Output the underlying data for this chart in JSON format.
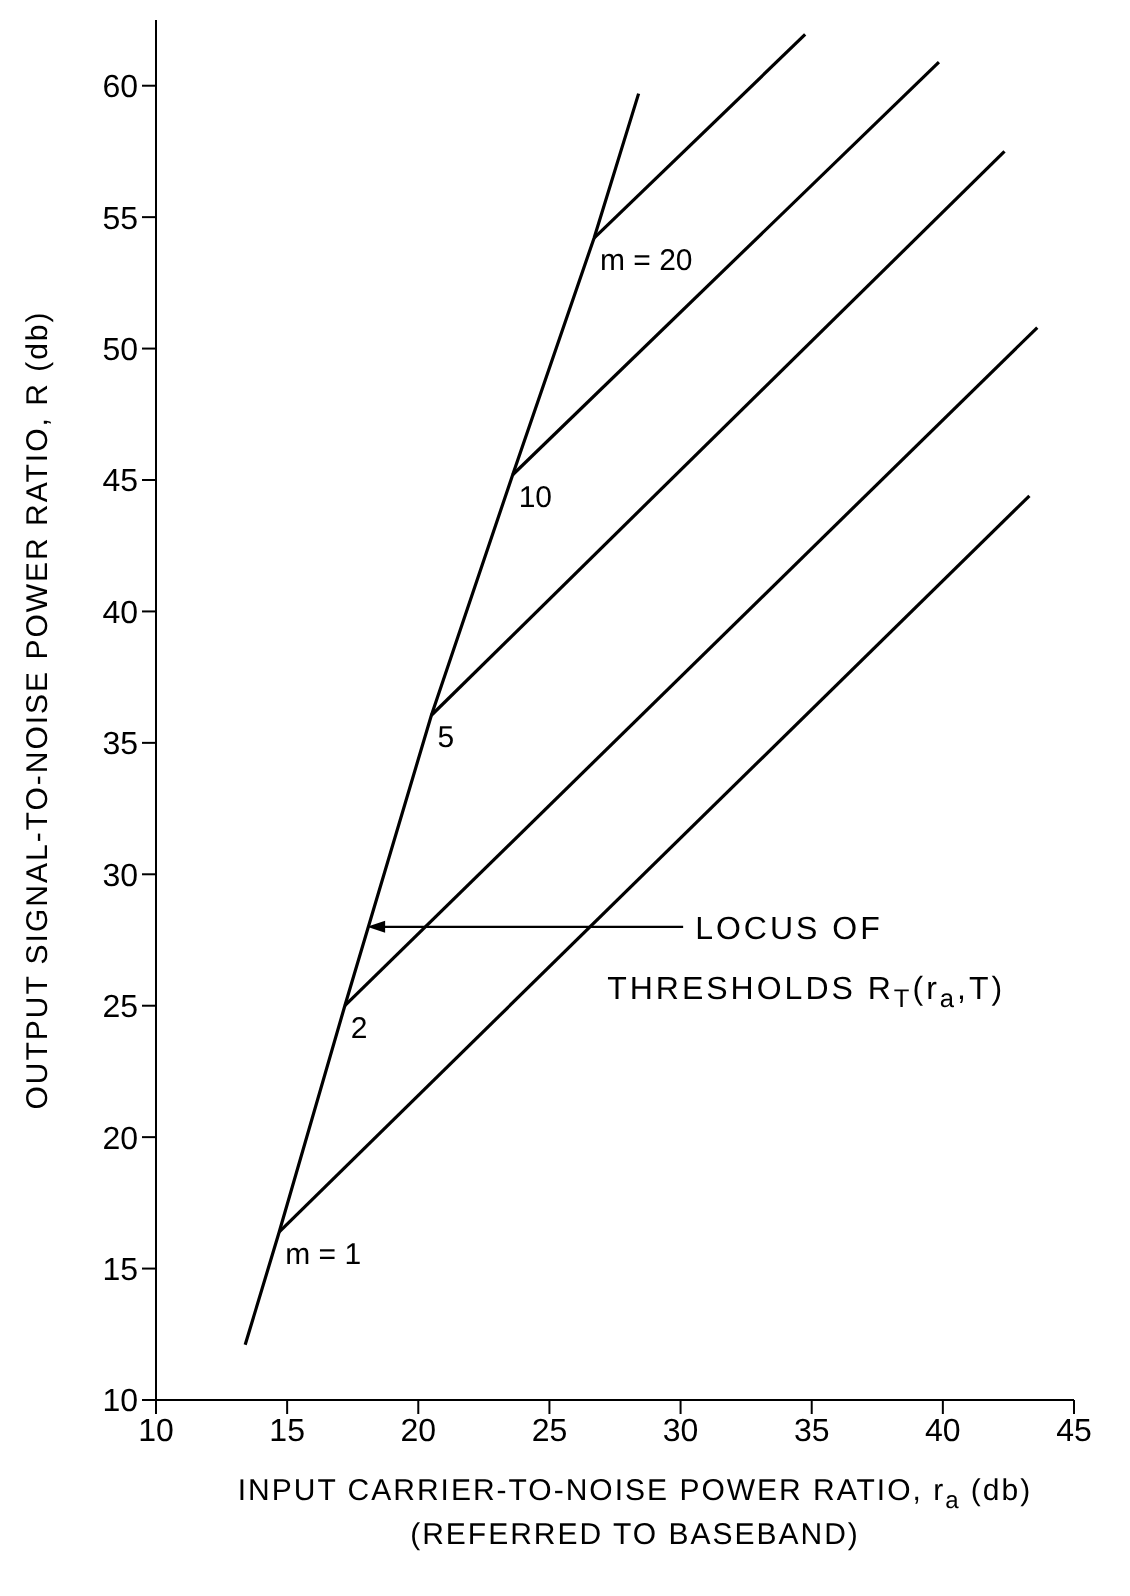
{
  "chart_data": {
    "type": "line",
    "xlabel": "INPUT CARRIER-TO-NOISE POWER RATIO, r$_{a}$ (db)\n(REFERRED TO BASEBAND)",
    "ylabel": "OUTPUT SIGNAL-TO-NOISE POWER RATIO,  R (db)",
    "xlim": [
      10,
      45
    ],
    "xticks": [
      10,
      15,
      20,
      25,
      30,
      35,
      40,
      45
    ],
    "ylim": [
      10,
      62.5
    ],
    "yticks": [
      10,
      15,
      20,
      25,
      30,
      35,
      40,
      45,
      50,
      55,
      60
    ],
    "grid": false,
    "marker": "none",
    "line_style": "solid",
    "series": [
      {
        "color": "#000000",
        "x": [
          13.4,
          14.7,
          17.2,
          20.5,
          23.6,
          26.7,
          28.4
        ],
        "values": [
          12.1,
          16.4,
          25.0,
          36.05,
          45.2,
          54.2,
          59.7
        ]
      },
      {
        "name": "m = 1",
        "color": "#000000",
        "x": [
          14.7,
          43.3
        ],
        "values": [
          16.4,
          44.4
        ]
      },
      {
        "name": "2",
        "color": "#000000",
        "x": [
          17.2,
          43.6
        ],
        "values": [
          25.0,
          50.8
        ]
      },
      {
        "name": "5",
        "color": "#000000",
        "x": [
          20.5,
          42.35
        ],
        "values": [
          36.05,
          57.5
        ]
      },
      {
        "name": "10",
        "color": "#000000",
        "x": [
          23.6,
          39.85
        ],
        "values": [
          45.2,
          60.9
        ]
      },
      {
        "name": "m = 20",
        "color": "#000000",
        "x": [
          26.7,
          34.75
        ],
        "values": [
          54.2,
          61.95
        ]
      }
    ],
    "annotations": [
      {
        "text": "LOCUS OF\nTHRESHOLDS R$_{T}$(r$_{a}$,T)",
        "x": 18.05,
        "y": 28
      }
    ]
  }
}
